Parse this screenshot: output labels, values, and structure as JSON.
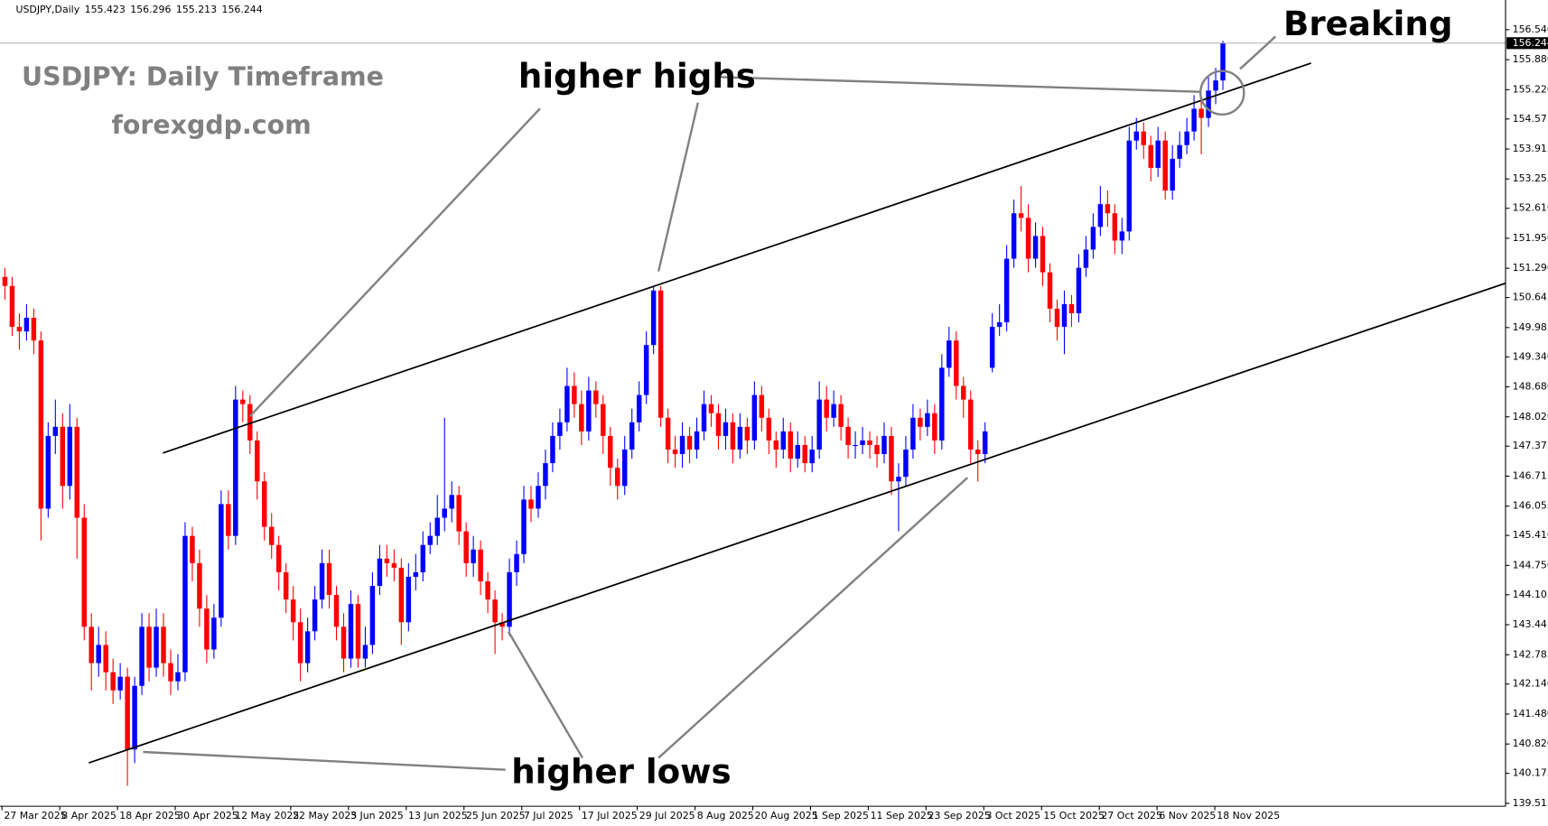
{
  "chart_data": {
    "type": "candlestick",
    "symbol": "USDJPY,Daily",
    "title": "USDJPY: Daily Timeframe",
    "subtitle": "forexgdp.com",
    "annotations": [
      "higher highs",
      "higher lows",
      "Breaking"
    ],
    "up_color": "#0000ff",
    "down_color": "#ff0000",
    "date_labels": [
      "27 Mar 2025",
      "8 Apr 2025",
      "18 Apr 2025",
      "30 Apr 2025",
      "12 May 2025",
      "22 May 2025",
      "3 Jun 2025",
      "13 Jun 2025",
      "25 Jun 2025",
      "7 Jul 2025",
      "17 Jul 2025",
      "29 Jul 2025",
      "8 Aug 2025",
      "20 Aug 2025",
      "1 Sep 2025",
      "11 Sep 2025",
      "23 Sep 2025",
      "3 Oct 2025",
      "15 Oct 2025",
      "27 Oct 2025",
      "6 Nov 2025",
      "18 Nov 2025"
    ],
    "ylim": [
      139.45,
      157.15
    ],
    "yticks": [
      {
        "value": 156.54,
        "label": "156.540"
      },
      {
        "value": 155.88,
        "label": "155.880"
      },
      {
        "value": 155.22,
        "label": "155.220"
      },
      {
        "value": 154.575,
        "label": "154.575"
      },
      {
        "value": 153.915,
        "label": "153.915"
      },
      {
        "value": 153.255,
        "label": "153.255"
      },
      {
        "value": 152.61,
        "label": "152.610"
      },
      {
        "value": 151.95,
        "label": "151.950"
      },
      {
        "value": 151.29,
        "label": "151.290"
      },
      {
        "value": 150.645,
        "label": "150.645"
      },
      {
        "value": 149.985,
        "label": "149.985"
      },
      {
        "value": 149.34,
        "label": "149.340"
      },
      {
        "value": 148.68,
        "label": "148.680"
      },
      {
        "value": 148.02,
        "label": "148.020"
      },
      {
        "value": 147.375,
        "label": "147.375"
      },
      {
        "value": 146.715,
        "label": "146.715"
      },
      {
        "value": 146.055,
        "label": "146.055"
      },
      {
        "value": 145.41,
        "label": "145.410"
      },
      {
        "value": 144.75,
        "label": "144.750"
      },
      {
        "value": 144.105,
        "label": "144.105"
      },
      {
        "value": 143.445,
        "label": "143.445"
      },
      {
        "value": 142.785,
        "label": "142.785"
      },
      {
        "value": 142.14,
        "label": "142.140"
      },
      {
        "value": 141.48,
        "label": "141.480"
      },
      {
        "value": 140.82,
        "label": "140.820"
      },
      {
        "value": 140.175,
        "label": "140.175"
      },
      {
        "value": 139.515,
        "label": "139.515"
      }
    ],
    "open": [
      151.1,
      150.9,
      150.0,
      149.9,
      150.2,
      149.7,
      146.0,
      147.6,
      147.8,
      146.5,
      147.8,
      145.8,
      143.4,
      142.6,
      143.0,
      142.4,
      142.0,
      142.3,
      140.7,
      142.1,
      143.4,
      142.5,
      143.4,
      142.6,
      142.2,
      142.4,
      145.4,
      144.8,
      143.8,
      142.9,
      143.6,
      146.1,
      145.4,
      148.4,
      148.3,
      147.5,
      146.6,
      145.6,
      145.2,
      144.6,
      144.0,
      143.5,
      142.6,
      143.3,
      144.0,
      144.8,
      144.1,
      143.4,
      142.7,
      143.9,
      142.7,
      143.0,
      144.3,
      144.9,
      144.8,
      144.7,
      143.5,
      144.5,
      144.6,
      145.2,
      145.4,
      145.8,
      146.0,
      146.3,
      145.5,
      144.8,
      145.1,
      144.4,
      144.0,
      143.5,
      143.4,
      144.6,
      145.0,
      146.2,
      146.0,
      146.5,
      147.0,
      147.6,
      147.9,
      148.7,
      148.3,
      147.7,
      148.6,
      148.3,
      147.6,
      146.9,
      146.5,
      147.3,
      147.9,
      148.5,
      149.6,
      150.8,
      148.0,
      147.3,
      147.2,
      147.6,
      147.3,
      147.7,
      148.3,
      148.1,
      147.6,
      147.9,
      147.3,
      147.8,
      147.5,
      148.5,
      148.0,
      147.5,
      147.3,
      147.7,
      147.1,
      147.4,
      147.0,
      147.3,
      148.4,
      148.0,
      148.3,
      147.8,
      147.4,
      147.4,
      147.5,
      147.4,
      147.2,
      147.6,
      146.6,
      146.7,
      147.3,
      148.0,
      147.8,
      148.1,
      147.5,
      149.1,
      149.7,
      148.7,
      148.4,
      147.3,
      147.2,
      149.1,
      150.0,
      150.1,
      151.5,
      152.5,
      152.4,
      151.5,
      152.0,
      151.2,
      150.4,
      150.0,
      150.5,
      150.3,
      151.3,
      151.7,
      152.2,
      152.7,
      152.5,
      151.9,
      152.1,
      154.1,
      154.3,
      154.0,
      153.5,
      154.1,
      153.0,
      153.7,
      154.0,
      154.3,
      154.8,
      154.6,
      155.2,
      155.423
    ],
    "high": [
      151.3,
      151.1,
      150.3,
      150.5,
      150.4,
      149.9,
      147.9,
      148.4,
      148.1,
      148.3,
      148.0,
      146.1,
      143.7,
      143.4,
      143.3,
      142.7,
      142.6,
      142.5,
      142.3,
      143.7,
      143.7,
      143.8,
      143.7,
      142.9,
      142.8,
      145.7,
      145.6,
      145.1,
      144.1,
      143.9,
      146.4,
      146.4,
      148.7,
      148.6,
      148.5,
      147.7,
      146.8,
      145.9,
      145.4,
      144.8,
      144.3,
      143.8,
      143.6,
      144.3,
      145.1,
      145.1,
      144.3,
      143.7,
      144.2,
      144.1,
      143.4,
      144.6,
      145.2,
      145.2,
      145.1,
      144.9,
      144.8,
      145.0,
      145.5,
      145.7,
      146.3,
      148.0,
      146.6,
      146.5,
      145.7,
      145.4,
      145.3,
      144.6,
      144.2,
      143.7,
      144.9,
      145.3,
      146.5,
      146.5,
      146.8,
      147.3,
      147.9,
      148.2,
      149.1,
      149.0,
      148.6,
      148.9,
      148.8,
      148.5,
      147.8,
      147.1,
      147.6,
      148.2,
      148.8,
      149.9,
      150.9,
      150.9,
      148.2,
      147.6,
      147.9,
      147.8,
      148.0,
      148.6,
      148.5,
      148.3,
      148.2,
      148.1,
      148.1,
      148.0,
      148.8,
      148.7,
      148.2,
      147.7,
      148.0,
      147.9,
      147.7,
      147.6,
      147.6,
      148.8,
      148.7,
      148.6,
      148.5,
      148.0,
      147.7,
      147.8,
      147.7,
      147.6,
      147.9,
      147.8,
      147.0,
      147.6,
      148.3,
      148.2,
      148.4,
      148.3,
      149.4,
      150.0,
      149.9,
      148.9,
      148.6,
      147.5,
      147.9,
      150.3,
      150.5,
      151.8,
      152.8,
      153.1,
      152.7,
      152.3,
      152.2,
      151.4,
      150.6,
      150.8,
      150.7,
      151.6,
      152.0,
      152.5,
      153.1,
      153.0,
      152.7,
      152.4,
      154.4,
      154.6,
      154.5,
      154.2,
      154.4,
      154.3,
      154.0,
      154.3,
      154.6,
      155.1,
      155.0,
      155.5,
      155.7,
      156.296
    ],
    "low": [
      150.6,
      149.8,
      149.5,
      149.7,
      149.4,
      145.3,
      145.8,
      147.2,
      146.0,
      146.2,
      144.9,
      143.1,
      142.0,
      142.3,
      142.0,
      141.7,
      141.8,
      139.9,
      140.4,
      141.9,
      142.2,
      142.3,
      142.3,
      141.9,
      142.0,
      142.2,
      144.4,
      143.4,
      142.6,
      142.7,
      143.4,
      145.1,
      145.2,
      147.9,
      147.2,
      146.2,
      145.3,
      144.9,
      144.2,
      143.7,
      143.1,
      142.2,
      142.4,
      143.1,
      143.8,
      143.8,
      143.1,
      142.4,
      142.5,
      142.5,
      142.5,
      142.8,
      144.1,
      144.5,
      144.4,
      143.0,
      143.3,
      144.2,
      144.4,
      145.0,
      145.2,
      145.5,
      145.7,
      145.2,
      144.5,
      144.5,
      144.1,
      143.7,
      142.8,
      143.1,
      143.2,
      144.3,
      144.8,
      145.7,
      145.8,
      146.2,
      146.8,
      147.3,
      147.7,
      148.0,
      147.4,
      147.5,
      148.0,
      147.2,
      146.5,
      146.2,
      146.3,
      147.1,
      147.7,
      148.3,
      149.4,
      147.8,
      147.0,
      146.9,
      146.9,
      147.0,
      147.1,
      147.5,
      147.8,
      147.3,
      147.3,
      147.0,
      147.1,
      147.2,
      147.3,
      147.7,
      147.2,
      146.9,
      147.1,
      146.8,
      146.9,
      146.8,
      146.8,
      147.1,
      147.7,
      147.8,
      147.5,
      147.1,
      147.1,
      147.2,
      147.1,
      146.9,
      147.0,
      146.3,
      145.5,
      146.5,
      147.1,
      147.5,
      147.6,
      147.2,
      147.3,
      148.9,
      148.4,
      148.0,
      147.0,
      146.6,
      147.0,
      149.0,
      149.8,
      149.9,
      151.3,
      152.1,
      151.2,
      151.3,
      150.9,
      150.1,
      149.7,
      149.4,
      150.0,
      150.1,
      151.1,
      151.5,
      152.0,
      152.2,
      151.6,
      151.6,
      151.9,
      153.9,
      153.7,
      153.2,
      153.3,
      152.8,
      152.8,
      153.5,
      153.8,
      154.1,
      153.8,
      154.4,
      154.9,
      155.213
    ],
    "close": [
      150.9,
      150.0,
      149.9,
      150.2,
      149.7,
      146.0,
      147.6,
      147.8,
      146.5,
      147.8,
      145.8,
      143.4,
      142.6,
      143.0,
      142.4,
      142.0,
      142.3,
      140.7,
      142.1,
      143.4,
      142.5,
      143.4,
      142.6,
      142.2,
      142.4,
      145.4,
      144.8,
      143.8,
      142.9,
      143.6,
      146.1,
      145.4,
      148.4,
      148.3,
      147.5,
      146.6,
      145.6,
      145.2,
      144.6,
      144.0,
      143.5,
      142.6,
      143.3,
      144.0,
      144.8,
      144.1,
      143.4,
      142.7,
      143.9,
      142.7,
      143.0,
      144.3,
      144.9,
      144.8,
      144.7,
      143.5,
      144.5,
      144.6,
      145.2,
      145.4,
      145.8,
      146.0,
      146.3,
      145.5,
      144.8,
      145.1,
      144.4,
      144.0,
      143.5,
      143.4,
      144.6,
      145.0,
      146.2,
      146.0,
      146.5,
      147.0,
      147.6,
      147.9,
      148.7,
      148.3,
      147.7,
      148.6,
      148.3,
      147.6,
      146.9,
      146.5,
      147.3,
      147.9,
      148.5,
      149.6,
      150.8,
      148.0,
      147.3,
      147.2,
      147.6,
      147.3,
      147.7,
      148.3,
      148.1,
      147.6,
      147.9,
      147.3,
      147.8,
      147.5,
      148.5,
      148.0,
      147.5,
      147.3,
      147.7,
      147.1,
      147.4,
      147.0,
      147.3,
      148.4,
      148.0,
      148.3,
      147.8,
      147.4,
      147.4,
      147.5,
      147.4,
      147.2,
      147.6,
      146.6,
      146.7,
      147.3,
      148.0,
      147.8,
      148.1,
      147.5,
      149.1,
      149.7,
      148.7,
      148.4,
      147.3,
      147.2,
      147.7,
      150.0,
      150.1,
      151.5,
      152.5,
      152.4,
      151.5,
      152.0,
      151.2,
      150.4,
      150.0,
      150.5,
      150.3,
      151.3,
      151.7,
      152.2,
      152.7,
      152.5,
      151.9,
      152.1,
      154.1,
      154.3,
      154.0,
      153.5,
      154.1,
      153.0,
      153.7,
      154.0,
      154.3,
      154.8,
      154.6,
      155.2,
      155.423,
      156.244
    ]
  }
}
